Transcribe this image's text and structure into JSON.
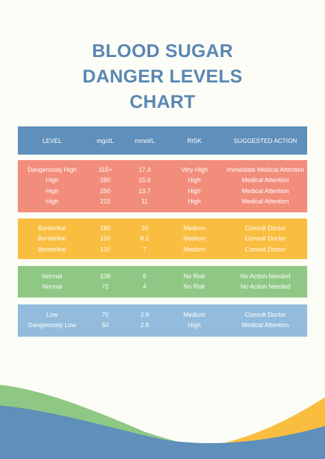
{
  "title": {
    "line1": "BLOOD SUGAR",
    "line2": "DANGER LEVELS",
    "line3": "CHART"
  },
  "colors": {
    "title": "#5a87b4",
    "header": "#5f8fbb",
    "danger": "#f28d7c",
    "borderline": "#f9bd40",
    "normal": "#8fc884",
    "low": "#93bcdc",
    "wave_green": "#8fc884",
    "wave_yellow": "#f9bd40",
    "wave_blue": "#5f8fbb"
  },
  "header": [
    "LEVEL",
    "mg/dL",
    "mmol/L",
    "RISK",
    "SUGGESTED ACTION"
  ],
  "groups": [
    {
      "rows": [
        [
          "Dangerously High",
          "315+",
          "17.4",
          "Very High",
          "Immediate Medical Attention"
        ],
        [
          "High",
          "280",
          "15.6",
          "High",
          "Medical Attention"
        ],
        [
          "High",
          "250",
          "13.7",
          "High",
          "Medical Attention"
        ],
        [
          "High",
          "215",
          "11",
          "High",
          "Medical Attention"
        ]
      ]
    },
    {
      "rows": [
        [
          "Borderline",
          "180",
          "10",
          "Medium",
          "Consult Doctor"
        ],
        [
          "Borderline",
          "150",
          "8.2",
          "Medium",
          "Consult Doctor"
        ],
        [
          "Borderline",
          "120",
          "7",
          "Medium",
          "Consult Doctor"
        ]
      ]
    },
    {
      "rows": [
        [
          "Normal",
          "108",
          "6",
          "No Risk",
          "No Action Needed"
        ],
        [
          "Normal",
          "72",
          "4",
          "No Risk",
          "No Action Needed"
        ]
      ]
    },
    {
      "rows": [
        [
          "Low",
          "70",
          "3.9",
          "Medium",
          "Consult Doctor"
        ],
        [
          "Dangerously Low",
          "50",
          "2.8",
          "High",
          "Medical Attention"
        ]
      ]
    }
  ]
}
